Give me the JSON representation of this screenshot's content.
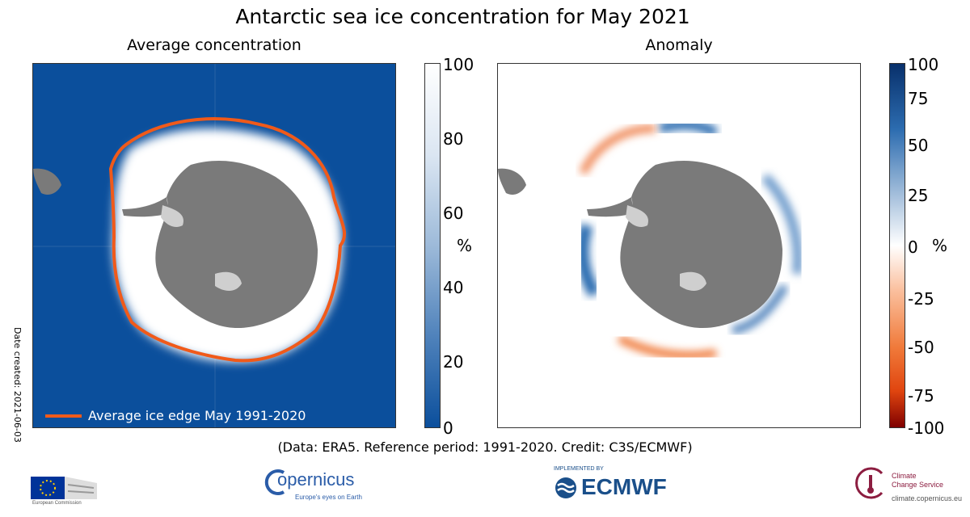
{
  "title": "Antarctic sea ice concentration for May 2021",
  "left_panel": {
    "subtitle": "Average concentration",
    "legend_label": "Average ice edge May 1991-2020",
    "colorbar": {
      "ticks": [
        "100",
        "80",
        "60",
        "40",
        "20",
        "0"
      ],
      "unit": "%",
      "colors": [
        "#ffffff",
        "#0b4f9c"
      ]
    },
    "ocean_color": "#0b4f9c",
    "ice_edge_color": "#f05a1a",
    "land_color": "#7a7a7a",
    "ice_shelf_color": "#cfcfcf"
  },
  "right_panel": {
    "subtitle": "Anomaly",
    "colorbar": {
      "ticks": [
        "100",
        "75",
        "50",
        "25",
        "0",
        "-25",
        "-50",
        "-75",
        "-100"
      ],
      "unit": "%",
      "colors": [
        "#08306b",
        "#ffffff",
        "#7f0000"
      ]
    }
  },
  "date_created": "Date created: 2021-06-03",
  "credit": "(Data: ERA5.  Reference period: 1991-2020.  Credit: C3S/ECMWF)",
  "logos": {
    "eu": "European Commission",
    "copernicus": "opernicus",
    "copernicus_tagline": "Europe's eyes on Earth",
    "ecmwf_small": "IMPLEMENTED BY",
    "ecmwf": "ECMWF",
    "c3s_line1": "Climate",
    "c3s_line2": "Change Service",
    "c3s_url": "climate.copernicus.eu"
  }
}
